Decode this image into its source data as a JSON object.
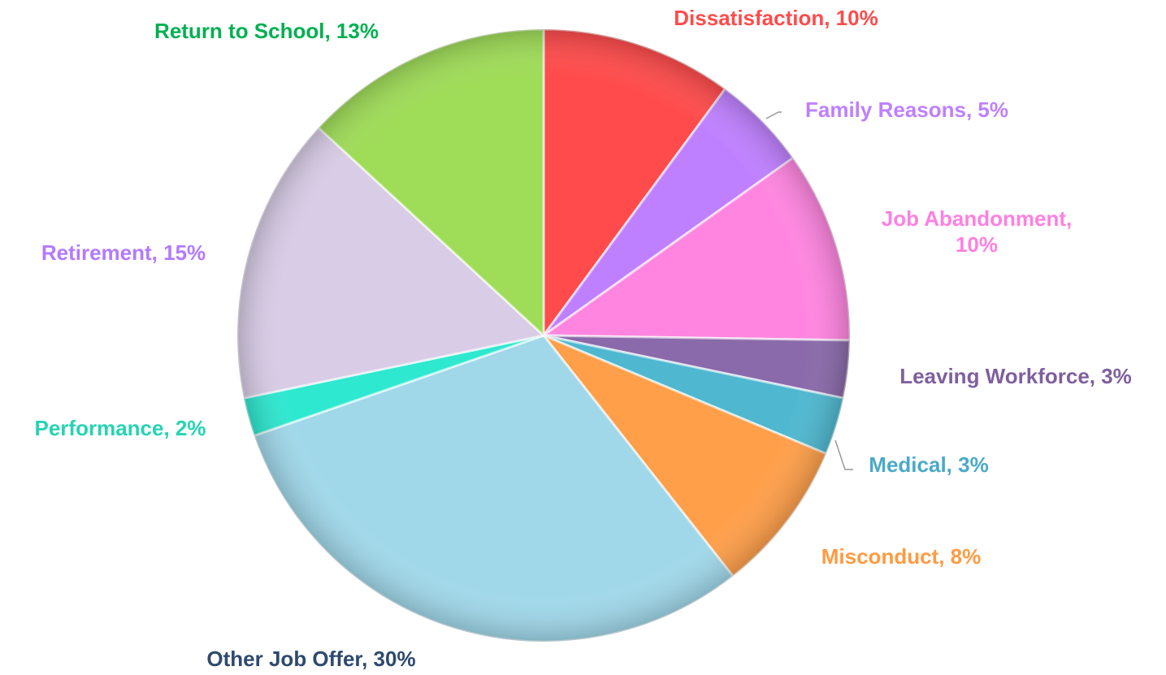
{
  "chart_data": {
    "type": "pie",
    "labels": [
      "Dissatisfaction, 10%",
      "Family Reasons, 5%",
      "Job Abandonment, 10%",
      "Leaving Workforce, 3%",
      "Medical, 3%",
      "Misconduct, 8%",
      "Other Job Offer, 30%",
      "Performance, 2%",
      "Retirement, 15%",
      "Return to School, 13%"
    ],
    "values": [
      10,
      5,
      10,
      3,
      3,
      8,
      30,
      2,
      15,
      13
    ],
    "colors": [
      "#ff4b4b",
      "#bf80ff",
      "#ff85e0",
      "#8a6aaa",
      "#4fb8d0",
      "#ff9f4a",
      "#a0d8ea",
      "#2ee8d0",
      "#d8cce6",
      "#9fdc58"
    ],
    "label_colors": [
      "#ff4b4b",
      "#bf80ff",
      "#ff80df",
      "#7f5f9f",
      "#4ba9c8",
      "#ff9b42",
      "#2e4a6e",
      "#26d4b4",
      "#b37aff",
      "#00b050"
    ]
  }
}
